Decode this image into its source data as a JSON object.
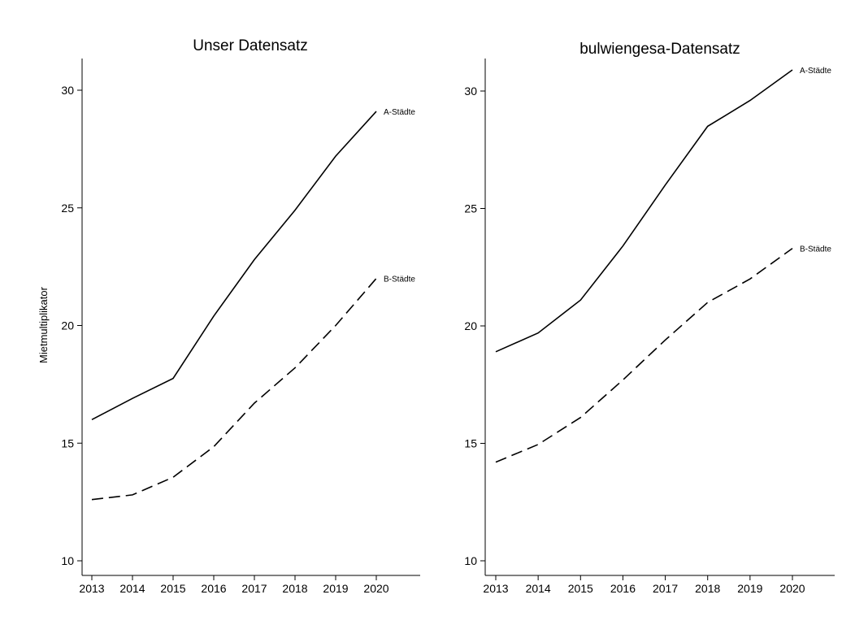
{
  "chart_data": [
    {
      "type": "line",
      "title": "Unser Datensatz",
      "ylabel": "Mietmultiplikator",
      "xlabel": "",
      "x": [
        "2013",
        "2014",
        "2015",
        "2016",
        "2017",
        "2018",
        "2019",
        "2020"
      ],
      "yticks": [
        "10",
        "15",
        "20",
        "25",
        "30"
      ],
      "ylim": [
        10,
        31.2
      ],
      "series": [
        {
          "name": "A-Städte",
          "style": "solid",
          "values": [
            16.0,
            16.9,
            17.75,
            20.4,
            22.8,
            24.9,
            27.2,
            29.1
          ]
        },
        {
          "name": "B-Städte",
          "style": "dashed",
          "values": [
            12.6,
            12.8,
            13.55,
            14.85,
            16.7,
            18.2,
            20.0,
            22.0
          ]
        }
      ]
    },
    {
      "type": "line",
      "title": "bulwiengesa-Datensatz",
      "ylabel": "",
      "xlabel": "",
      "x": [
        "2013",
        "2014",
        "2015",
        "2016",
        "2017",
        "2018",
        "2019",
        "2020"
      ],
      "yticks": [
        "10",
        "15",
        "20",
        "25",
        "30"
      ],
      "ylim": [
        10,
        31.2
      ],
      "series": [
        {
          "name": "A-Städte",
          "style": "solid",
          "values": [
            18.9,
            19.7,
            21.1,
            23.4,
            26.0,
            28.5,
            29.6,
            30.9
          ]
        },
        {
          "name": "B-Städte",
          "style": "dashed",
          "values": [
            14.2,
            14.95,
            16.1,
            17.7,
            19.4,
            21.0,
            22.0,
            23.3
          ]
        }
      ]
    }
  ]
}
